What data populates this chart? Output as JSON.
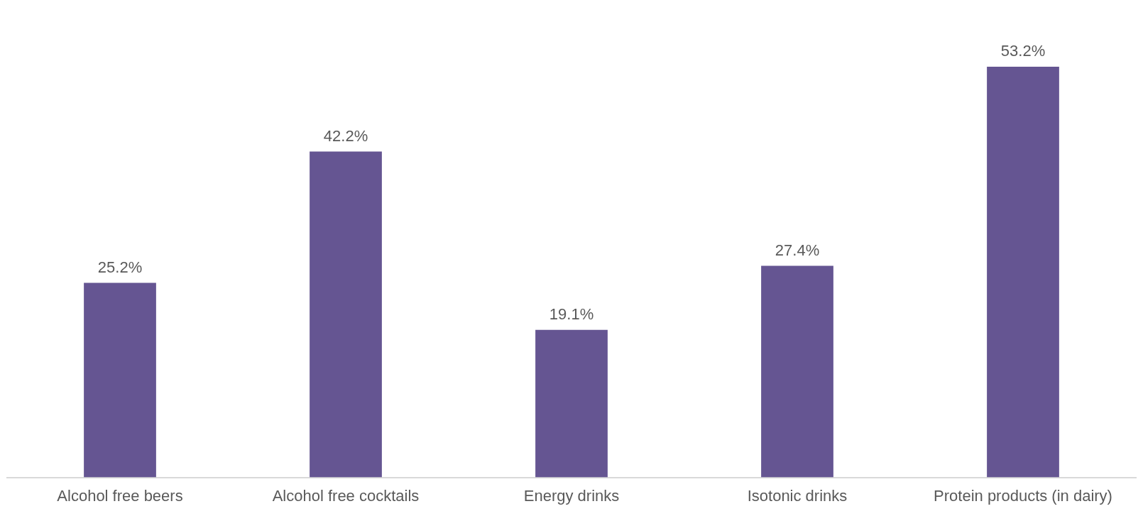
{
  "chart_data": {
    "type": "bar",
    "categories": [
      "Alcohol free beers",
      "Alcohol free cocktails",
      "Energy drinks",
      "Isotonic drinks",
      "Protein products (in dairy)"
    ],
    "values": [
      25.2,
      42.2,
      19.1,
      27.4,
      53.2
    ],
    "value_labels": [
      "25.2%",
      "42.2%",
      "19.1%",
      "27.4%",
      "53.2%"
    ],
    "color": "#655592",
    "grid": false,
    "legend": false,
    "tick_labels": "x"
  }
}
